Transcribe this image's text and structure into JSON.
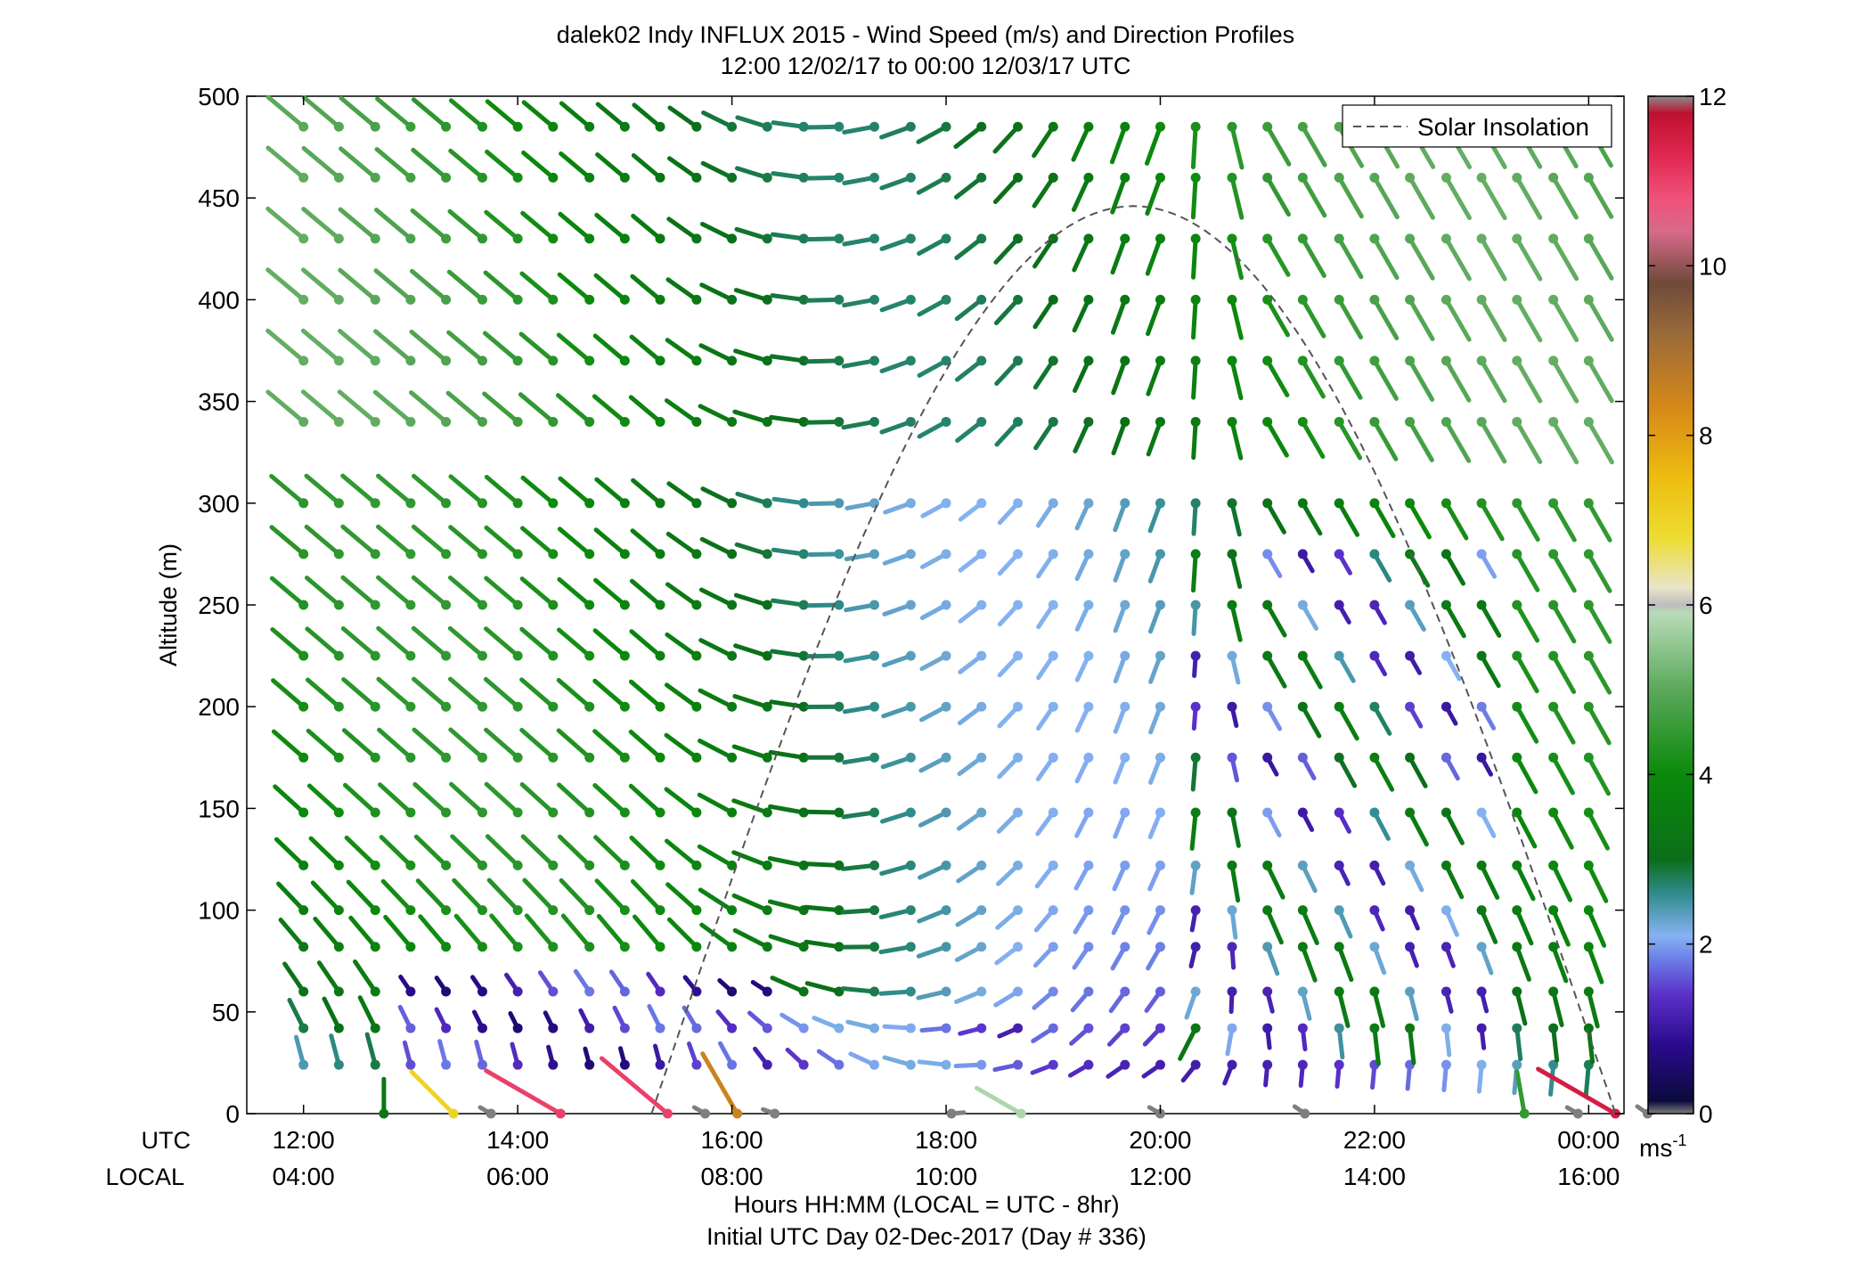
{
  "chart_data": {
    "type": "wind-barb-profile",
    "title": "dalek02 Indy INFLUX 2015 - Wind Speed (m/s) and Direction Profiles",
    "subtitle": "12:00 12/02/17 to 00:00 12/03/17  UTC",
    "ylabel": "Altitude (m)",
    "xlabel": "Hours HH:MM  (LOCAL = UTC - 8hr)",
    "xlabel2": "Initial UTC Day 02-Dec-2017 (Day # 336)",
    "x_row_labels": [
      "UTC",
      "LOCAL"
    ],
    "xticks_utc": [
      "12:00",
      "14:00",
      "16:00",
      "18:00",
      "20:00",
      "22:00",
      "00:00"
    ],
    "xticks_local": [
      "04:00",
      "06:00",
      "08:00",
      "10:00",
      "12:00",
      "14:00",
      "16:00"
    ],
    "xtick_hours": [
      12,
      14,
      16,
      18,
      20,
      22,
      24
    ],
    "xlim_hours": [
      11.47,
      24.33
    ],
    "ylim": [
      0,
      500
    ],
    "yticks": [
      0,
      50,
      100,
      150,
      200,
      250,
      300,
      350,
      400,
      450,
      500
    ],
    "legend": {
      "entries": [
        "Solar Insolation"
      ],
      "placement": "top-right",
      "line_style": "dashed",
      "line_color": "#555555"
    },
    "colorbar": {
      "range": [
        0,
        12
      ],
      "ticks": [
        0,
        2,
        4,
        6,
        8,
        10,
        12
      ],
      "unit_label": "ms",
      "unit_exponent": "-1",
      "stops": [
        {
          "v": 0.0,
          "c": "#7f7f7f"
        },
        {
          "v": 0.15,
          "c": "#0a0a3c"
        },
        {
          "v": 0.8,
          "c": "#2a0a8c"
        },
        {
          "v": 1.4,
          "c": "#5a30c8"
        },
        {
          "v": 1.8,
          "c": "#6a7ae6"
        },
        {
          "v": 2.1,
          "c": "#86b2f2"
        },
        {
          "v": 2.6,
          "c": "#2e8b8b"
        },
        {
          "v": 3.0,
          "c": "#0b6e1a"
        },
        {
          "v": 4.0,
          "c": "#0a8a0a"
        },
        {
          "v": 5.0,
          "c": "#5aa85a"
        },
        {
          "v": 5.9,
          "c": "#b8dcb8"
        },
        {
          "v": 6.0,
          "c": "#bdbdbd"
        },
        {
          "v": 6.2,
          "c": "#e8e4c8"
        },
        {
          "v": 6.8,
          "c": "#eedc30"
        },
        {
          "v": 7.5,
          "c": "#eebc10"
        },
        {
          "v": 8.3,
          "c": "#d88a18"
        },
        {
          "v": 9.2,
          "c": "#9a6a3a"
        },
        {
          "v": 9.8,
          "c": "#6e4a3a"
        },
        {
          "v": 10.4,
          "c": "#d86a8a"
        },
        {
          "v": 10.8,
          "c": "#f0507a"
        },
        {
          "v": 11.3,
          "c": "#e02850"
        },
        {
          "v": 11.8,
          "c": "#c01030"
        },
        {
          "v": 12.0,
          "c": "#8a8a8a"
        }
      ]
    },
    "solar_insolation": {
      "rise_hour": 15.25,
      "peak_hour": 19.75,
      "peak_altitude_m": 446,
      "set_hour": 24.25
    },
    "altitudes_m": [
      24,
      42,
      60,
      82,
      100,
      122,
      148,
      175,
      200,
      225,
      250,
      275,
      300,
      340,
      370,
      400,
      430,
      460,
      485
    ],
    "profile_hours": [
      12.0,
      12.33,
      12.67,
      13.0,
      13.33,
      13.67,
      14.0,
      14.33,
      14.67,
      15.0,
      15.33,
      15.67,
      16.0,
      16.33,
      16.67,
      17.0,
      17.33,
      17.67,
      18.0,
      18.33,
      18.67,
      19.0,
      19.33,
      19.67,
      20.0,
      20.33,
      20.67,
      21.0,
      21.33,
      21.67,
      22.0,
      22.33,
      22.67,
      23.0,
      23.33,
      23.67,
      24.0
    ],
    "surface_points": [
      {
        "hour": 12.75,
        "speed": 3.3,
        "dir_deg": 0
      },
      {
        "hour": 13.4,
        "speed": 7.0,
        "dir_deg": 315
      },
      {
        "hour": 13.75,
        "speed": 0.0,
        "dir_deg": 300
      },
      {
        "hour": 14.4,
        "speed": 11.0,
        "dir_deg": 300
      },
      {
        "hour": 15.4,
        "speed": 11.0,
        "dir_deg": 310
      },
      {
        "hour": 15.75,
        "speed": 0.0,
        "dir_deg": 300
      },
      {
        "hour": 16.05,
        "speed": 8.5,
        "dir_deg": 330
      },
      {
        "hour": 16.4,
        "speed": 0.0,
        "dir_deg": 290
      },
      {
        "hour": 18.05,
        "speed": 0.0,
        "dir_deg": 85
      },
      {
        "hour": 18.7,
        "speed": 5.8,
        "dir_deg": 300
      },
      {
        "hour": 20.0,
        "speed": 0.0,
        "dir_deg": 300
      },
      {
        "hour": 21.35,
        "speed": 0.0,
        "dir_deg": 305
      },
      {
        "hour": 23.4,
        "speed": 4.5,
        "dir_deg": 350
      },
      {
        "hour": 23.9,
        "speed": 0.0,
        "dir_deg": 300
      },
      {
        "hour": 24.25,
        "speed": 11.5,
        "dir_deg": 300
      },
      {
        "hour": 24.55,
        "speed": 0.0,
        "dir_deg": 305
      }
    ]
  }
}
